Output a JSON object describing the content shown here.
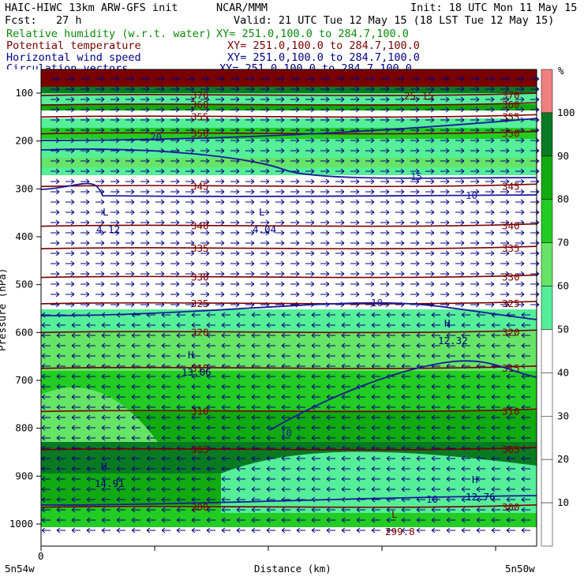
{
  "header": {
    "model": "HAIC-HIWC 13km ARW-GFS init",
    "source": "NCAR/MMM",
    "init": "Init: 18 UTC Mon 11 May 15",
    "fcst": "Fcst:   27 h",
    "valid": "Valid: 21 UTC Tue 12 May 15 (18 LST Tue 12 May 15)",
    "fields": [
      {
        "name": "Relative humidity (w.r.t. water)",
        "xy": "XY= 251.0,100.0 to 284.7,100.0",
        "color": "#0a8a0a"
      },
      {
        "name": "Potential temperature",
        "xy": "XY= 251.0,100.0 to 284.7,100.0",
        "color": "#7a0000"
      },
      {
        "name": "Horizontal wind speed",
        "xy": "XY= 251.0,100.0 to 284.7,100.0",
        "color": "#000080"
      },
      {
        "name": "Circulation vectors",
        "xy": "XY= 251.0,100.0 to 284.7,100.0",
        "color": "#000080"
      }
    ]
  },
  "chart_data": {
    "type": "heatmap",
    "ylabel": "Pressure (hPa)",
    "xlabel": "Distance (km)",
    "x_start_label": "5n54w",
    "x_end_label": "5n50w",
    "x_zero_label": "0",
    "yticks": [
      100,
      200,
      300,
      400,
      500,
      600,
      700,
      800,
      900,
      1000
    ],
    "ylim": [
      1050,
      20
    ],
    "colorbar": {
      "unit": "%",
      "levels": [
        10,
        20,
        30,
        40,
        50,
        60,
        70,
        80,
        90,
        100
      ],
      "colors": [
        "#ffffff",
        "#ffffff",
        "#ffffff",
        "#ffffff",
        "#ffffff",
        "#55ee99",
        "#66e466",
        "#22cc22",
        "#11aa11",
        "#0a7a22",
        "#f08080"
      ]
    },
    "theta_contours": [
      {
        "label": "300",
        "p": 965
      },
      {
        "label": "305",
        "p": 845
      },
      {
        "label": "310",
        "p": 765
      },
      {
        "label": "315",
        "p": 675
      },
      {
        "label": "320",
        "p": 600
      },
      {
        "label": "325",
        "p": 540
      },
      {
        "label": "330",
        "p": 485
      },
      {
        "label": "335",
        "p": 425
      },
      {
        "label": "340",
        "p": 378
      },
      {
        "label": "345",
        "p": 295
      },
      {
        "label": "350",
        "p": 185
      },
      {
        "label": "355",
        "p": 150
      },
      {
        "label": "360",
        "p": 125
      },
      {
        "label": "370",
        "p": 105
      }
    ],
    "wind_speed_labels": [
      "10",
      "15",
      "20",
      "25"
    ],
    "extrema": [
      {
        "type": "L",
        "value": "4.12",
        "p": 395
      },
      {
        "type": "L",
        "value": "4.04",
        "p": 395
      },
      {
        "type": "H",
        "value": "12.32",
        "p": 600
      },
      {
        "type": "H",
        "value": "13.06",
        "p": 650
      },
      {
        "type": "H",
        "value": "14.91",
        "p": 880
      },
      {
        "type": "H",
        "value": "12.76",
        "p": 915
      },
      {
        "type": "L",
        "value": "299.8",
        "p": 995
      },
      {
        "type": "L",
        "value": "25.15",
        "p": 110
      }
    ]
  }
}
